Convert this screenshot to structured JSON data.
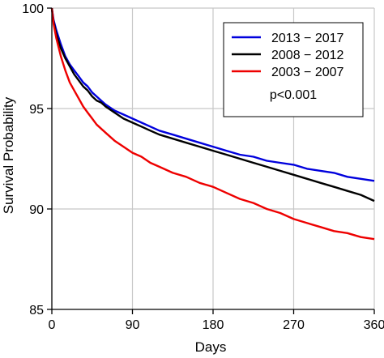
{
  "chart_data": {
    "type": "line",
    "title": "",
    "xlabel": "Days",
    "ylabel": "Survival Probability",
    "xlim": [
      0,
      360
    ],
    "ylim": [
      85,
      100
    ],
    "xticks": [
      0,
      90,
      180,
      270,
      360
    ],
    "yticks": [
      85,
      90,
      95,
      100
    ],
    "grid": true,
    "legend_position": "top-right",
    "annotation": "p<0.001",
    "series": [
      {
        "name": "2013 − 2017",
        "color": "#0000dd",
        "x": [
          0,
          2,
          5,
          10,
          15,
          20,
          25,
          30,
          35,
          40,
          45,
          50,
          55,
          60,
          70,
          80,
          90,
          100,
          110,
          120,
          135,
          150,
          165,
          180,
          195,
          210,
          225,
          240,
          255,
          270,
          285,
          300,
          315,
          330,
          345,
          360
        ],
        "y": [
          100,
          99.4,
          98.9,
          98.2,
          97.6,
          97.2,
          96.9,
          96.6,
          96.3,
          96.1,
          95.8,
          95.6,
          95.4,
          95.2,
          94.9,
          94.7,
          94.5,
          94.3,
          94.1,
          93.9,
          93.7,
          93.5,
          93.3,
          93.1,
          92.9,
          92.7,
          92.6,
          92.4,
          92.3,
          92.2,
          92.0,
          91.9,
          91.8,
          91.6,
          91.5,
          91.4
        ]
      },
      {
        "name": "2008 − 2012",
        "color": "#000000",
        "x": [
          0,
          2,
          5,
          10,
          15,
          20,
          25,
          30,
          35,
          40,
          45,
          50,
          55,
          60,
          70,
          80,
          90,
          100,
          110,
          120,
          135,
          150,
          165,
          180,
          195,
          210,
          225,
          240,
          255,
          270,
          285,
          300,
          315,
          330,
          345,
          360
        ],
        "y": [
          100,
          99.3,
          98.7,
          98.0,
          97.5,
          97.1,
          96.7,
          96.4,
          96.1,
          95.9,
          95.6,
          95.4,
          95.3,
          95.1,
          94.8,
          94.5,
          94.3,
          94.1,
          93.9,
          93.7,
          93.5,
          93.3,
          93.1,
          92.9,
          92.7,
          92.5,
          92.3,
          92.1,
          91.9,
          91.7,
          91.5,
          91.3,
          91.1,
          90.9,
          90.7,
          90.4
        ]
      },
      {
        "name": "2003 − 2007",
        "color": "#ee0000",
        "x": [
          0,
          2,
          5,
          10,
          15,
          20,
          25,
          30,
          35,
          40,
          45,
          50,
          55,
          60,
          70,
          80,
          90,
          100,
          110,
          120,
          135,
          150,
          165,
          180,
          195,
          210,
          225,
          240,
          255,
          270,
          285,
          300,
          315,
          330,
          345,
          360
        ],
        "y": [
          100,
          99.2,
          98.5,
          97.6,
          96.9,
          96.3,
          95.9,
          95.5,
          95.1,
          94.8,
          94.5,
          94.2,
          94.0,
          93.8,
          93.4,
          93.1,
          92.8,
          92.6,
          92.3,
          92.1,
          91.8,
          91.6,
          91.3,
          91.1,
          90.8,
          90.5,
          90.3,
          90.0,
          89.8,
          89.5,
          89.3,
          89.1,
          88.9,
          88.8,
          88.6,
          88.5
        ]
      }
    ]
  }
}
